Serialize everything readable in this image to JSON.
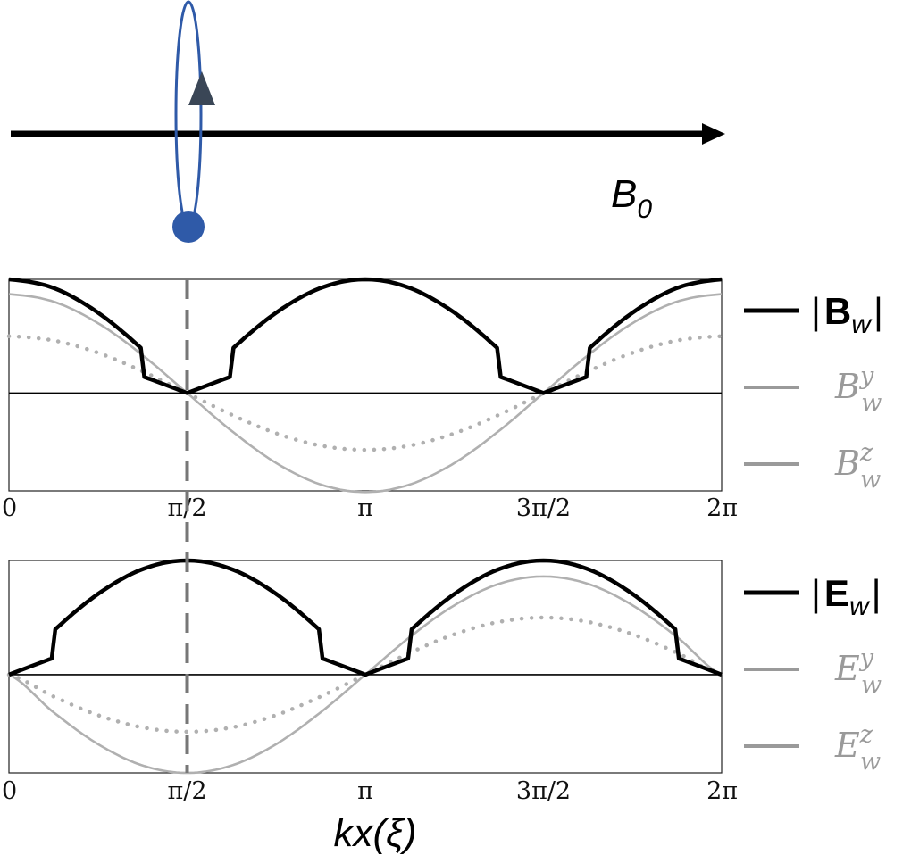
{
  "diagram": {
    "field_label": "B",
    "field_label_sub": "0"
  },
  "x_axis_label": "kx(ξ)",
  "colors": {
    "magnitude": "#000000",
    "y_component": "#b0b0b0",
    "z_component": "#b0b0b0",
    "particle": "#2f5aa8",
    "orbit": "#2f5aa8",
    "arrowhead": "#3a4656",
    "vertical_marker": "#777777"
  },
  "chart_data": [
    {
      "type": "line",
      "panel": "magnetic",
      "x_ticks": [
        "0",
        "π/2",
        "π",
        "3π/2",
        "2π"
      ],
      "x_tick_values": [
        0,
        1.5708,
        3.1416,
        4.7124,
        6.2832
      ],
      "xlim": [
        0,
        6.2832
      ],
      "ylim": [
        -0.86,
        1.0
      ],
      "zero_line": true,
      "vertical_marker_x": 1.5708,
      "legend_placement": "right",
      "x": [
        0,
        0.3927,
        0.7854,
        1.1781,
        1.5708,
        1.9635,
        2.3562,
        2.7489,
        3.1416,
        3.5343,
        3.927,
        4.3197,
        4.7124,
        5.1051,
        5.4978,
        5.8905,
        6.2832
      ],
      "series": [
        {
          "name": "|Bw|",
          "legend": {
            "prefix": "|",
            "main": "B",
            "sub": "w",
            "suffix": "|"
          },
          "style": "solid-thick",
          "values": [
            1.0,
            0.924,
            0.707,
            0.383,
            0.0,
            0.383,
            0.707,
            0.924,
            1.0,
            0.924,
            0.707,
            0.383,
            0.0,
            0.383,
            0.707,
            0.924,
            1.0
          ]
        },
        {
          "name": "Bw^y",
          "legend": {
            "main": "B",
            "sub": "w",
            "sup": "y"
          },
          "style": "solid-thin",
          "values": [
            0.87,
            0.804,
            0.615,
            0.333,
            0.0,
            -0.333,
            -0.615,
            -0.804,
            -0.87,
            -0.804,
            -0.615,
            -0.333,
            0.0,
            0.333,
            0.615,
            0.804,
            0.87
          ]
        },
        {
          "name": "Bw^z",
          "legend": {
            "main": "B",
            "sub": "w",
            "sup": "z"
          },
          "style": "dotted",
          "values": [
            0.5,
            0.462,
            0.354,
            0.191,
            0.0,
            -0.191,
            -0.354,
            -0.462,
            -0.5,
            -0.462,
            -0.354,
            -0.191,
            0.0,
            0.191,
            0.354,
            0.462,
            0.5
          ]
        }
      ]
    },
    {
      "type": "line",
      "panel": "electric",
      "x_ticks": [
        "0",
        "π/2",
        "π",
        "3π/2",
        "2π"
      ],
      "x_tick_values": [
        0,
        1.5708,
        3.1416,
        4.7124,
        6.2832
      ],
      "xlim": [
        0,
        6.2832
      ],
      "ylim": [
        -0.86,
        1.0
      ],
      "zero_line": true,
      "vertical_marker_x": 1.5708,
      "legend_placement": "right",
      "x": [
        0,
        0.3927,
        0.7854,
        1.1781,
        1.5708,
        1.9635,
        2.3562,
        2.7489,
        3.1416,
        3.5343,
        3.927,
        4.3197,
        4.7124,
        5.1051,
        5.4978,
        5.8905,
        6.2832
      ],
      "series": [
        {
          "name": "|Ew|",
          "legend": {
            "prefix": "|",
            "main": "E",
            "sub": "w",
            "suffix": "|"
          },
          "style": "solid-thick",
          "values": [
            0.0,
            0.383,
            0.707,
            0.924,
            1.0,
            0.924,
            0.707,
            0.383,
            0.0,
            0.383,
            0.707,
            0.924,
            1.0,
            0.924,
            0.707,
            0.383,
            0.0
          ]
        },
        {
          "name": "Ew^y",
          "legend": {
            "main": "E",
            "sub": "w",
            "sup": "y"
          },
          "style": "solid-thin",
          "values": [
            0.0,
            -0.329,
            -0.608,
            -0.795,
            -0.86,
            -0.795,
            -0.608,
            -0.329,
            0.0,
            0.329,
            0.608,
            0.795,
            0.86,
            0.795,
            0.608,
            0.329,
            0.0
          ]
        },
        {
          "name": "Ew^z",
          "legend": {
            "main": "E",
            "sub": "w",
            "sup": "z"
          },
          "style": "dotted",
          "values": [
            0.0,
            -0.191,
            -0.354,
            -0.462,
            -0.5,
            -0.462,
            -0.354,
            -0.191,
            0.0,
            0.191,
            0.354,
            0.462,
            0.5,
            0.462,
            0.354,
            0.191,
            0.0
          ]
        }
      ]
    }
  ]
}
